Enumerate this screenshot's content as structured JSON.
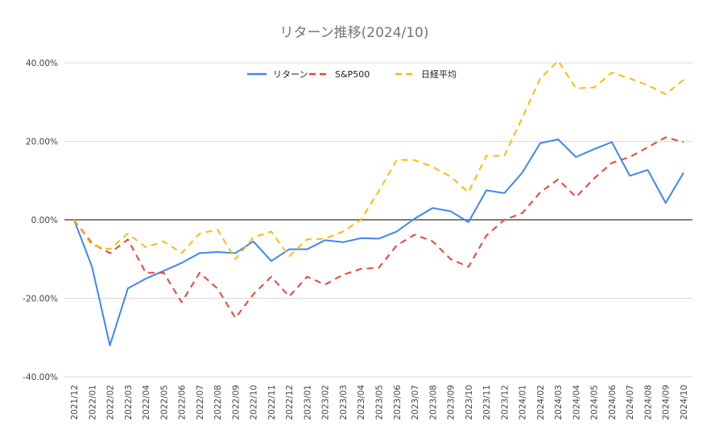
{
  "chart_data": {
    "type": "line",
    "title": "リターン推移(2024/10)",
    "legend_position": "top-center",
    "grid": true,
    "ylim": [
      -40,
      40
    ],
    "yticks": [
      "40.00%",
      "20.00%",
      "0.00%",
      "-20.00%",
      "-40.00%"
    ],
    "ytick_values": [
      40,
      20,
      0,
      -20,
      -40
    ],
    "categories": [
      "2021/12",
      "2022/01",
      "2022/02",
      "2022/03",
      "2022/04",
      "2022/05",
      "2022/06",
      "2022/07",
      "2022/08",
      "2022/09",
      "2022/10",
      "2022/11",
      "2022/12",
      "2023/01",
      "2023/02",
      "2023/03",
      "2023/04",
      "2023/05",
      "2023/06",
      "2023/07",
      "2023/08",
      "2023/09",
      "2023/10",
      "2023/11",
      "2023/12",
      "2024/01",
      "2024/02",
      "2024/03",
      "2024/04",
      "2024/05",
      "2024/06",
      "2024/07",
      "2024/08",
      "2024/09",
      "2024/10"
    ],
    "series": [
      {
        "name": "リターン",
        "color": "#4285f4",
        "dash": "solid",
        "values": [
          0,
          -12,
          -32,
          -17.5,
          -15,
          -13,
          -11,
          -8.5,
          -8.2,
          -8.5,
          -5.5,
          -10.5,
          -7.5,
          -7.5,
          -5.2,
          -5.7,
          -4.7,
          -4.8,
          -3,
          0.3,
          3,
          2.2,
          -0.6,
          7.5,
          6.8,
          12,
          19.5,
          20.5,
          16,
          18,
          19.8,
          11.2,
          12.7,
          4.3,
          12
        ]
      },
      {
        "name": "S&P500",
        "color": "#ea4335",
        "dash": "dashed",
        "values": [
          0,
          -6,
          -8.5,
          -5,
          -13.5,
          -13.5,
          -21,
          -13.5,
          -17.5,
          -25,
          -19,
          -14.5,
          -19.5,
          -14.5,
          -16.5,
          -14,
          -12.5,
          -12.2,
          -6.5,
          -3.8,
          -5.5,
          -10,
          -12,
          -4,
          0,
          1.7,
          7,
          10.3,
          5.8,
          10.5,
          14.5,
          16,
          18.5,
          21,
          19.8
        ]
      },
      {
        "name": "日経平均",
        "color": "#fbbc04",
        "dash": "dashed",
        "values": [
          0,
          -6.5,
          -7.5,
          -3.5,
          -7,
          -5.5,
          -8.5,
          -3.5,
          -2.5,
          -10,
          -4.5,
          -3,
          -9.3,
          -5,
          -4.8,
          -3,
          0,
          7.3,
          15.3,
          15.2,
          13.5,
          11,
          7,
          16.3,
          16.3,
          26,
          36,
          40.5,
          33.5,
          33.7,
          37.5,
          36,
          34.3,
          32,
          35.7
        ]
      }
    ]
  }
}
